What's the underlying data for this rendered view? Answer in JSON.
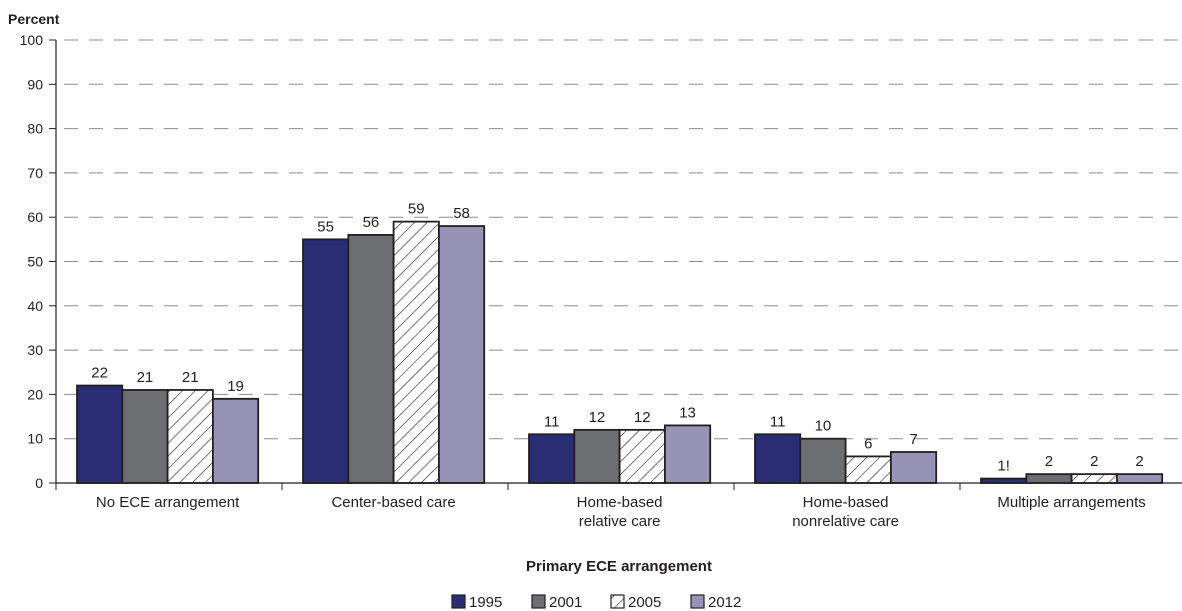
{
  "chart_data": {
    "type": "bar",
    "ylabel": "Percent",
    "xlabel": "Primary ECE arrangement",
    "ylim": [
      0,
      100
    ],
    "yticks": [
      0,
      10,
      20,
      30,
      40,
      50,
      60,
      70,
      80,
      90,
      100
    ],
    "grid": true,
    "legend_position": "bottom-center",
    "categories": [
      [
        "No ECE arrangement"
      ],
      [
        "Center-based care"
      ],
      [
        "Home-based",
        "relative care"
      ],
      [
        "Home-based",
        "nonrelative care"
      ],
      [
        "Multiple arrangements"
      ]
    ],
    "series": [
      {
        "name": "1995",
        "color": "#2b2d74",
        "pattern": "solid",
        "values": [
          22,
          55,
          11,
          11,
          1
        ],
        "labels": [
          "22",
          "55",
          "11",
          "11",
          "1!"
        ]
      },
      {
        "name": "2001",
        "color": "#6d6e71",
        "pattern": "solid",
        "values": [
          21,
          56,
          12,
          10,
          2
        ],
        "labels": [
          "21",
          "56",
          "12",
          "10",
          "2"
        ]
      },
      {
        "name": "2005",
        "color": "#ffffff",
        "pattern": "diagonal-hatch",
        "values": [
          21,
          59,
          12,
          6,
          2
        ],
        "labels": [
          "21",
          "59",
          "12",
          "6",
          "2"
        ]
      },
      {
        "name": "2012",
        "color": "#9693b6",
        "pattern": "solid",
        "values": [
          19,
          58,
          13,
          7,
          2
        ],
        "labels": [
          "19",
          "58",
          "13",
          "7",
          "2"
        ]
      }
    ]
  }
}
